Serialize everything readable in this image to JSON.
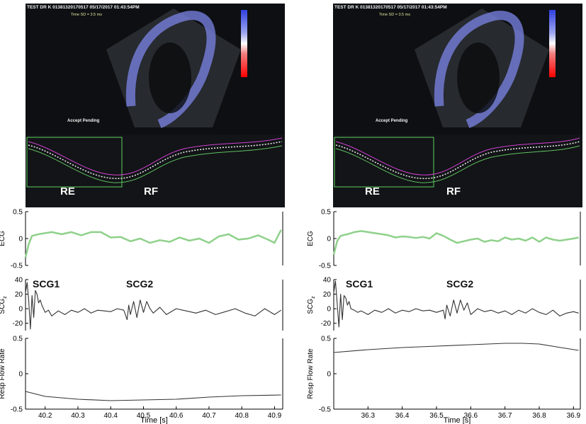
{
  "panels": [
    {
      "echo": {
        "header": "TEST DR K 01381320170517 05/17/2017 01:43:54PM",
        "time_sd": "Time SD = 3.5 ms",
        "accept": "Accept Pending",
        "strain_label": "RE",
        "strain_label2": "RF"
      }
    },
    {
      "echo": {
        "header": "TEST DR K 01381320170517 05/17/2017 01:43:54PM",
        "time_sd": "Time SD = 3.5 ms",
        "accept": "Accept Pending",
        "strain_label": "RE",
        "strain_label2": "RF"
      }
    }
  ],
  "chart_data": [
    {
      "type": "line",
      "panel": "left",
      "subplots": [
        {
          "ylabel": "ECG",
          "ylim": [
            -0.5,
            0.5
          ],
          "yticks": [
            "0.5",
            "0",
            "-0.5"
          ],
          "color": "#8fd18b",
          "series": [
            {
              "x": [
                40.14,
                40.15,
                40.16,
                40.18,
                40.2,
                40.22,
                40.25,
                40.28,
                40.31,
                40.34,
                40.37,
                40.4,
                40.43,
                40.46,
                40.49,
                40.52,
                40.55,
                40.58,
                40.61,
                40.64,
                40.67,
                40.7,
                40.73,
                40.76,
                40.79,
                40.82,
                40.85,
                40.88,
                40.9,
                40.92
              ],
              "y": [
                -0.35,
                -0.1,
                0.05,
                0.08,
                0.1,
                0.12,
                0.08,
                0.12,
                0.06,
                0.12,
                0.12,
                0.02,
                0.03,
                -0.05,
                0.0,
                -0.08,
                -0.03,
                -0.06,
                0.02,
                -0.04,
                0.0,
                -0.08,
                0.04,
                0.08,
                -0.02,
                0.0,
                0.06,
                -0.02,
                -0.08,
                0.16
              ]
            }
          ]
        },
        {
          "ylabel": "SCGz",
          "ylim": [
            -30,
            40
          ],
          "yticks": [
            "40",
            "20",
            "0",
            "-20"
          ],
          "color": "#333333",
          "annotations": [
            "SCG1",
            "SCG2"
          ],
          "series": [
            {
              "x": [
                40.14,
                40.145,
                40.15,
                40.155,
                40.16,
                40.165,
                40.17,
                40.175,
                40.18,
                40.185,
                40.19,
                40.2,
                40.21,
                40.22,
                40.24,
                40.26,
                40.28,
                40.3,
                40.32,
                40.34,
                40.36,
                40.38,
                40.4,
                40.42,
                40.44,
                40.45,
                40.455,
                40.46,
                40.47,
                40.48,
                40.49,
                40.5,
                40.51,
                40.52,
                40.53,
                40.55,
                40.57,
                40.6,
                40.63,
                40.66,
                40.69,
                40.72,
                40.75,
                40.78,
                40.81,
                40.84,
                40.87,
                40.9,
                40.92
              ],
              "y": [
                22,
                36,
                10,
                -28,
                18,
                -12,
                25,
                20,
                8,
                12,
                5,
                -5,
                -2,
                -10,
                -3,
                -8,
                -2,
                -5,
                0,
                -6,
                -2,
                -3,
                -4,
                0,
                -2,
                -15,
                5,
                -8,
                10,
                -12,
                12,
                -5,
                10,
                0,
                -6,
                2,
                -8,
                0,
                -3,
                -6,
                -2,
                -8,
                -4,
                0,
                -6,
                -10,
                0,
                -8,
                -2
              ]
            }
          ]
        },
        {
          "ylabel": "Resp Flow Rate",
          "ylim": [
            -0.5,
            0.5
          ],
          "yticks": [
            "0.5",
            "0",
            "-0.5"
          ],
          "color": "#333333",
          "series": [
            {
              "x": [
                40.14,
                40.2,
                40.3,
                40.4,
                40.5,
                40.6,
                40.7,
                40.8,
                40.92
              ],
              "y": [
                -0.25,
                -0.32,
                -0.36,
                -0.38,
                -0.37,
                -0.36,
                -0.33,
                -0.31,
                -0.3
              ]
            }
          ]
        }
      ],
      "xticks": [
        "40.2",
        "40.3",
        "40.4",
        "40.5",
        "40.6",
        "40.7",
        "40.8",
        "40.9"
      ],
      "xlim": [
        40.14,
        40.925
      ],
      "xlabel": "Time [s]"
    },
    {
      "type": "line",
      "panel": "right",
      "subplots": [
        {
          "ylabel": "ECG",
          "ylim": [
            -0.5,
            0.5
          ],
          "yticks": [
            "0.5",
            "0",
            "-0.5"
          ],
          "color": "#8fd18b",
          "series": [
            {
              "x": [
                36.2,
                36.21,
                36.22,
                36.24,
                36.26,
                36.28,
                36.3,
                36.32,
                36.34,
                36.36,
                36.38,
                36.4,
                36.42,
                36.44,
                36.46,
                36.48,
                36.5,
                36.52,
                36.54,
                36.56,
                36.58,
                36.6,
                36.62,
                36.64,
                36.66,
                36.68,
                36.7,
                36.72,
                36.74,
                36.76,
                36.78,
                36.8,
                36.82,
                36.84,
                36.86,
                36.88,
                36.9,
                36.915
              ],
              "y": [
                -0.3,
                -0.05,
                0.05,
                0.08,
                0.12,
                0.14,
                0.12,
                0.1,
                0.08,
                0.06,
                0.02,
                0.04,
                0.03,
                0.01,
                0.03,
                0.0,
                0.1,
                0.05,
                -0.02,
                -0.08,
                -0.05,
                -0.02,
                0.0,
                -0.06,
                -0.03,
                -0.05,
                0.02,
                -0.02,
                0.0,
                -0.04,
                0.02,
                -0.06,
                0.02,
                -0.02,
                -0.04,
                -0.02,
                0.0,
                0.02
              ]
            }
          ]
        },
        {
          "ylabel": "SCGz",
          "ylim": [
            -30,
            40
          ],
          "yticks": [
            "40",
            "20",
            "0",
            "-20"
          ],
          "color": "#333333",
          "annotations": [
            "SCG1",
            "SCG2"
          ],
          "series": [
            {
              "x": [
                36.2,
                36.205,
                36.21,
                36.215,
                36.22,
                36.225,
                36.23,
                36.235,
                36.24,
                36.245,
                36.25,
                36.26,
                36.27,
                36.28,
                36.3,
                36.32,
                36.34,
                36.36,
                36.38,
                36.4,
                36.42,
                36.44,
                36.46,
                36.48,
                36.5,
                36.52,
                36.525,
                36.53,
                36.54,
                36.55,
                36.56,
                36.57,
                36.58,
                36.59,
                36.6,
                36.62,
                36.64,
                36.66,
                36.68,
                36.7,
                36.72,
                36.74,
                36.76,
                36.78,
                36.8,
                36.82,
                36.84,
                36.86,
                36.88,
                36.9,
                36.915
              ],
              "y": [
                22,
                38,
                8,
                -25,
                20,
                -15,
                18,
                15,
                5,
                10,
                0,
                -2,
                -5,
                -3,
                -8,
                -2,
                -5,
                0,
                -6,
                -2,
                -4,
                0,
                -3,
                -2,
                -5,
                -2,
                -14,
                5,
                -10,
                12,
                -6,
                12,
                -2,
                8,
                -8,
                0,
                -4,
                -2,
                -6,
                -3,
                -8,
                -2,
                -6,
                0,
                -5,
                -8,
                -2,
                -10,
                -6,
                -4,
                -6
              ]
            }
          ]
        },
        {
          "ylabel": "Resp Flow Rate",
          "ylim": [
            -0.5,
            0.5
          ],
          "yticks": [
            "0.5",
            "0",
            "-0.5"
          ],
          "color": "#333333",
          "series": [
            {
              "x": [
                36.2,
                36.3,
                36.4,
                36.5,
                36.6,
                36.7,
                36.75,
                36.8,
                36.85,
                36.915
              ],
              "y": [
                0.3,
                0.34,
                0.37,
                0.39,
                0.41,
                0.43,
                0.43,
                0.42,
                0.38,
                0.33
              ]
            }
          ]
        }
      ],
      "xticks": [
        "36.3",
        "36.4",
        "36.5",
        "36.6",
        "36.7",
        "36.8",
        "36.9"
      ],
      "xlim": [
        36.2,
        36.92
      ],
      "xlabel": "Time [s]"
    }
  ]
}
